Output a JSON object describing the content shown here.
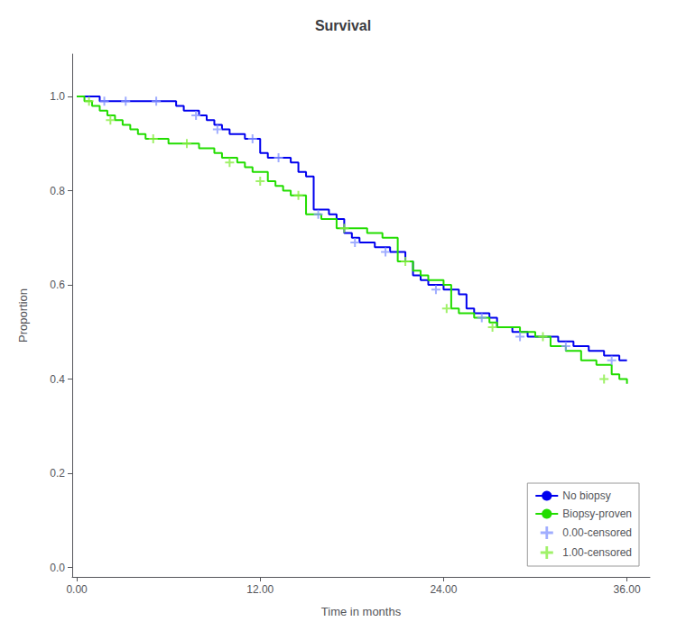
{
  "chart_data": {
    "type": "line",
    "title": "Survival",
    "xlabel": "Time in months",
    "ylabel": "Proportion",
    "xlim": [
      -0.3,
      37.5
    ],
    "ylim": [
      -0.02,
      1.09
    ],
    "xticks": [
      {
        "value": 0,
        "label": "0.00"
      },
      {
        "value": 12,
        "label": "12.00"
      },
      {
        "value": 24,
        "label": "24.00"
      },
      {
        "value": 36,
        "label": "36.00"
      }
    ],
    "yticks": [
      {
        "value": 0.0,
        "label": "0.0"
      },
      0.2,
      0.4,
      0.6,
      0.8,
      {
        "value": 1.0,
        "label": "1.0"
      }
    ],
    "grid": false,
    "legend": "lower right",
    "series": [
      {
        "name": "No biopsy",
        "type": "step",
        "color": "#0000ee",
        "x": [
          0.0,
          1.0,
          1.5,
          2.0,
          2.5,
          3.0,
          3.5,
          4.5,
          5.0,
          5.5,
          6.0,
          6.5,
          7.0,
          8.0,
          8.5,
          9.0,
          9.5,
          10.0,
          10.5,
          11.0,
          12.0,
          12.5,
          13.5,
          14.0,
          14.5,
          15.0,
          15.5,
          16.5,
          17.0,
          17.5,
          18.0,
          18.5,
          19.5,
          20.5,
          21.5,
          22.0,
          22.5,
          23.0,
          24.0,
          25.0,
          25.5,
          26.0,
          27.0,
          27.5,
          28.5,
          29.5,
          30.5,
          31.5,
          32.5,
          33.0,
          33.5,
          34.0,
          34.5,
          35.5,
          36.0
        ],
        "values": [
          1.0,
          1.0,
          0.99,
          0.99,
          0.99,
          0.99,
          0.99,
          0.99,
          0.99,
          0.99,
          0.99,
          0.98,
          0.97,
          0.96,
          0.95,
          0.94,
          0.93,
          0.92,
          0.92,
          0.91,
          0.88,
          0.87,
          0.87,
          0.86,
          0.84,
          0.83,
          0.76,
          0.75,
          0.74,
          0.71,
          0.7,
          0.69,
          0.68,
          0.67,
          0.65,
          0.62,
          0.61,
          0.6,
          0.59,
          0.58,
          0.55,
          0.54,
          0.53,
          0.51,
          0.5,
          0.49,
          0.49,
          0.48,
          0.47,
          0.47,
          0.46,
          0.46,
          0.45,
          0.44,
          0.44
        ]
      },
      {
        "name": "Biopsy-proven",
        "type": "step",
        "color": "#22dd00",
        "x": [
          0.0,
          0.5,
          1.0,
          1.5,
          2.0,
          2.5,
          3.0,
          3.5,
          4.0,
          4.5,
          5.5,
          6.0,
          6.5,
          7.0,
          7.5,
          8.0,
          8.5,
          9.0,
          9.5,
          10.5,
          11.0,
          11.5,
          12.5,
          13.0,
          13.5,
          14.0,
          15.0,
          16.0,
          17.0,
          18.0,
          19.0,
          20.0,
          21.0,
          22.0,
          22.5,
          23.0,
          24.0,
          24.5,
          25.0,
          26.0,
          27.0,
          27.5,
          28.0,
          29.0,
          30.0,
          31.0,
          32.0,
          33.0,
          34.0,
          35.0,
          35.5,
          36.0
        ],
        "values": [
          1.0,
          0.99,
          0.98,
          0.97,
          0.96,
          0.95,
          0.94,
          0.93,
          0.92,
          0.91,
          0.91,
          0.9,
          0.9,
          0.9,
          0.9,
          0.89,
          0.89,
          0.88,
          0.87,
          0.86,
          0.85,
          0.84,
          0.82,
          0.81,
          0.8,
          0.79,
          0.75,
          0.74,
          0.72,
          0.72,
          0.71,
          0.7,
          0.65,
          0.63,
          0.62,
          0.61,
          0.6,
          0.55,
          0.54,
          0.53,
          0.52,
          0.51,
          0.51,
          0.5,
          0.49,
          0.47,
          0.46,
          0.44,
          0.43,
          0.41,
          0.4,
          0.39
        ]
      },
      {
        "name": "0.00-censored",
        "type": "scatter",
        "marker": "+",
        "color": "#8899ff",
        "x": [
          1.8,
          3.2,
          5.2,
          7.8,
          9.2,
          11.5,
          13.2,
          15.8,
          18.2,
          20.2,
          23.5,
          26.5,
          29.0,
          32.0,
          35.0
        ],
        "values": [
          0.99,
          0.99,
          0.99,
          0.96,
          0.93,
          0.91,
          0.87,
          0.75,
          0.69,
          0.67,
          0.59,
          0.53,
          0.49,
          0.47,
          0.44
        ]
      },
      {
        "name": "1.00-censored",
        "type": "scatter",
        "marker": "+",
        "color": "#88ee44",
        "x": [
          0.8,
          2.2,
          5.0,
          7.2,
          10.0,
          12.0,
          14.5,
          17.5,
          21.5,
          24.2,
          27.2,
          30.5,
          34.5
        ],
        "values": [
          0.99,
          0.95,
          0.91,
          0.9,
          0.86,
          0.82,
          0.79,
          0.72,
          0.65,
          0.55,
          0.51,
          0.49,
          0.4
        ]
      }
    ]
  }
}
